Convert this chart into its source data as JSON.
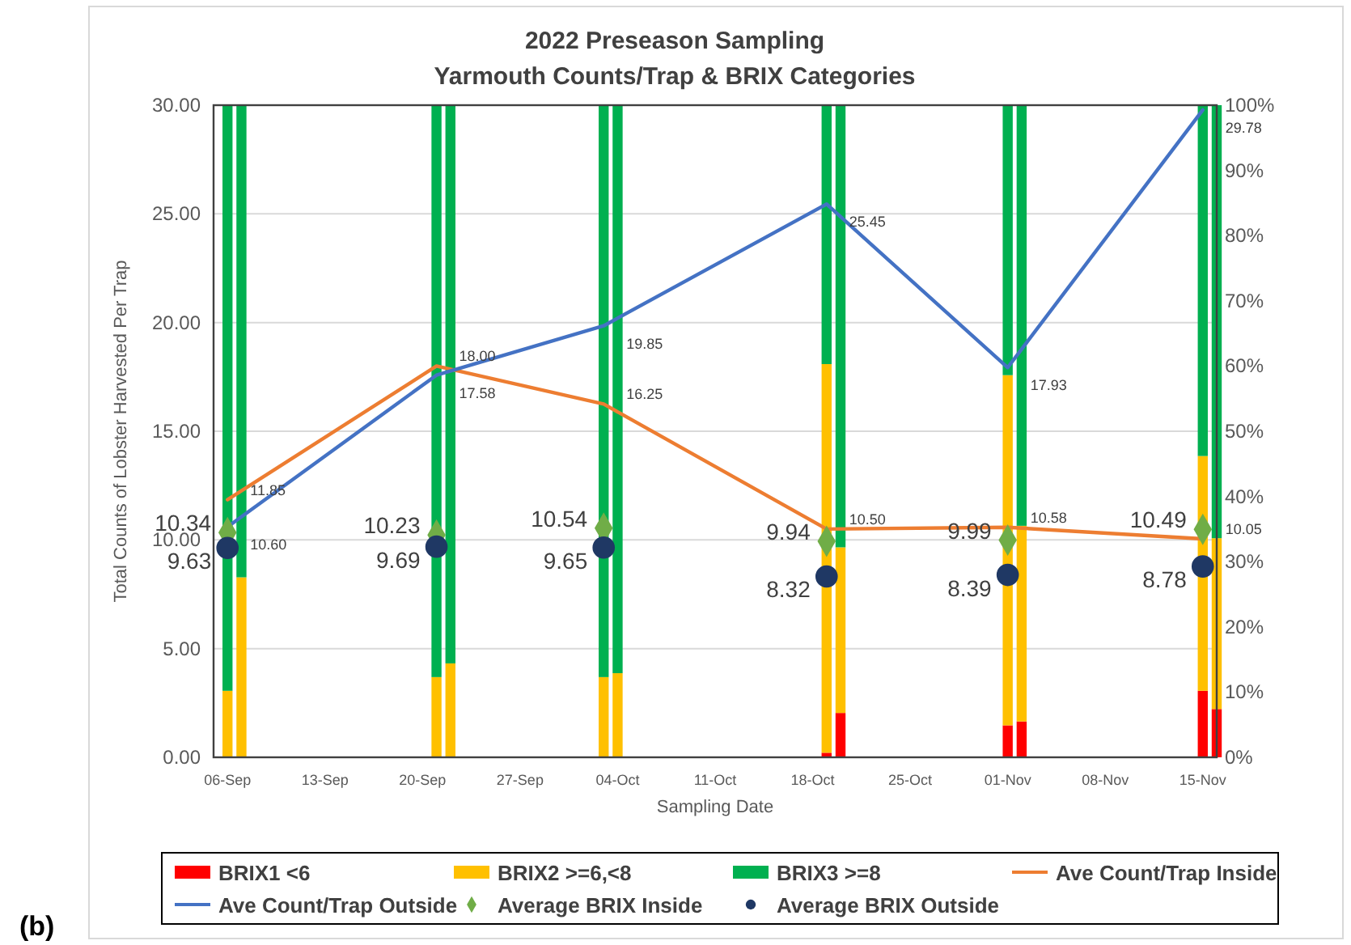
{
  "chart_data": {
    "type": "bar",
    "title": "2022 Preseason Sampling",
    "subtitle": "Yarmouth Counts/Trap & BRIX Categories",
    "xlabel": "Sampling Date",
    "ylabel": "Total Counts of Lobster Harvested Per Trap",
    "annotations": [
      "(b)"
    ],
    "stacked": true,
    "grid": "y",
    "legend": "bottom",
    "xlim": [
      "2022-09-05",
      "2022-11-16"
    ],
    "xticks": [
      {
        "value": "2022-09-06",
        "label": "06-Sep"
      },
      {
        "value": "2022-09-13",
        "label": "13-Sep"
      },
      {
        "value": "2022-09-20",
        "label": "20-Sep"
      },
      {
        "value": "2022-09-27",
        "label": "27-Sep"
      },
      {
        "value": "2022-10-04",
        "label": "04-Oct"
      },
      {
        "value": "2022-10-11",
        "label": "11-Oct"
      },
      {
        "value": "2022-10-18",
        "label": "18-Oct"
      },
      {
        "value": "2022-10-25",
        "label": "25-Oct"
      },
      {
        "value": "2022-11-01",
        "label": "01-Nov"
      },
      {
        "value": "2022-11-08",
        "label": "08-Nov"
      },
      {
        "value": "2022-11-15",
        "label": "15-Nov"
      }
    ],
    "ylim": [
      0,
      30
    ],
    "yticks": [
      {
        "value": 0,
        "label": "0.00"
      },
      {
        "value": 5,
        "label": "5.00"
      },
      {
        "value": 10,
        "label": "10.00"
      },
      {
        "value": 15,
        "label": "15.00"
      },
      {
        "value": 20,
        "label": "20.00"
      },
      {
        "value": 25,
        "label": "25.00"
      },
      {
        "value": 30,
        "label": "30.00"
      }
    ],
    "y2lim": [
      0,
      100
    ],
    "y2ticks": [
      {
        "value": 0,
        "label": "0%"
      },
      {
        "value": 10,
        "label": "10%"
      },
      {
        "value": 20,
        "label": "20%"
      },
      {
        "value": 30,
        "label": "30%"
      },
      {
        "value": 40,
        "label": "40%"
      },
      {
        "value": 50,
        "label": "50%"
      },
      {
        "value": 60,
        "label": "60%"
      },
      {
        "value": 70,
        "label": "70%"
      },
      {
        "value": 80,
        "label": "80%"
      },
      {
        "value": 90,
        "label": "90%"
      },
      {
        "value": 100,
        "label": "100%"
      }
    ],
    "series": [
      {
        "name": "BRIX1 <6",
        "axis": "y2",
        "color": "#ff0000",
        "x": [
          "2022-09-06",
          "2022-09-07",
          "2022-09-21",
          "2022-09-22",
          "2022-10-03",
          "2022-10-04",
          "2022-10-19",
          "2022-10-20",
          "2022-11-01",
          "2022-11-02",
          "2022-11-15",
          "2022-11-16"
        ],
        "values": [
          0,
          0,
          0,
          0,
          0,
          0,
          0.7,
          6.8,
          4.9,
          5.5,
          10.2,
          7.4
        ]
      },
      {
        "name": "BRIX2 >=6,<8",
        "axis": "y2",
        "color": "#ffc000",
        "x": [
          "2022-09-06",
          "2022-09-07",
          "2022-09-21",
          "2022-09-22",
          "2022-10-03",
          "2022-10-04",
          "2022-10-19",
          "2022-10-20",
          "2022-11-01",
          "2022-11-02",
          "2022-11-15",
          "2022-11-16"
        ],
        "values": [
          10.2,
          27.6,
          12.3,
          14.4,
          12.3,
          12.9,
          59.6,
          25.4,
          53.7,
          30.0,
          36.0,
          26.2
        ]
      },
      {
        "name": "BRIX3 >=8",
        "axis": "y2",
        "color": "#00b050",
        "x": [
          "2022-09-06",
          "2022-09-07",
          "2022-09-21",
          "2022-09-22",
          "2022-10-03",
          "2022-10-04",
          "2022-10-19",
          "2022-10-20",
          "2022-11-01",
          "2022-11-02",
          "2022-11-15",
          "2022-11-16"
        ],
        "values": [
          89.8,
          72.4,
          87.7,
          85.6,
          87.7,
          87.1,
          39.7,
          67.8,
          41.4,
          64.5,
          53.8,
          66.4
        ]
      },
      {
        "name": "Ave Count/Trap Inside",
        "type": "line",
        "color": "#ed7d31",
        "marker": "none",
        "x": [
          "2022-09-06",
          "2022-09-21",
          "2022-10-03",
          "2022-10-19",
          "2022-11-01",
          "2022-11-15"
        ],
        "values": [
          11.85,
          18.0,
          16.25,
          10.5,
          10.58,
          10.05
        ],
        "value_labels": [
          "11.85",
          "18.00",
          "16.25",
          "10.50",
          "10.58",
          "10.05"
        ]
      },
      {
        "name": "Ave Count/Trap Outside",
        "type": "line",
        "color": "#4472c4",
        "marker": "none",
        "x": [
          "2022-09-06",
          "2022-09-21",
          "2022-10-03",
          "2022-10-19",
          "2022-11-01",
          "2022-11-15"
        ],
        "values": [
          10.6,
          17.58,
          19.85,
          25.45,
          17.93,
          29.78
        ],
        "value_labels": [
          "10.60",
          "17.58",
          "19.85",
          "25.45",
          "17.93",
          "29.78"
        ]
      },
      {
        "name": "Average BRIX Inside",
        "type": "scatter",
        "color": "#70ad47",
        "marker": "diamond",
        "x": [
          "2022-09-06",
          "2022-09-21",
          "2022-10-03",
          "2022-10-19",
          "2022-11-01",
          "2022-11-15"
        ],
        "values": [
          10.34,
          10.23,
          10.54,
          9.94,
          9.99,
          10.49
        ],
        "value_labels": [
          "10.34",
          "10.23",
          "10.54",
          "9.94",
          "9.99",
          "10.49"
        ]
      },
      {
        "name": "Average BRIX Outside",
        "type": "scatter",
        "color": "#1f3864",
        "marker": "circle",
        "x": [
          "2022-09-06",
          "2022-09-21",
          "2022-10-03",
          "2022-10-19",
          "2022-11-01",
          "2022-11-15"
        ],
        "values": [
          9.63,
          9.69,
          9.65,
          8.32,
          8.39,
          8.78
        ],
        "value_labels": [
          "9.63",
          "9.69",
          "9.65",
          "8.32",
          "8.39",
          "8.78"
        ]
      }
    ]
  }
}
